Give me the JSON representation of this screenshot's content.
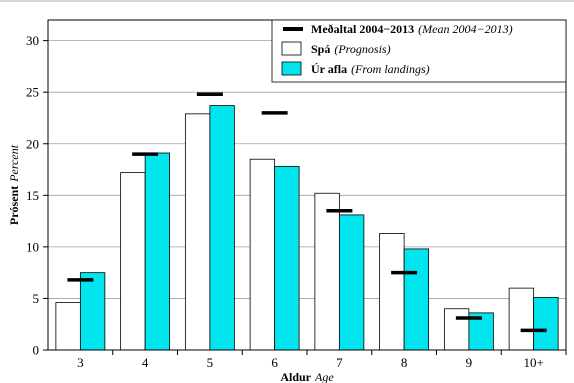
{
  "chart_data": {
    "type": "bar",
    "categories": [
      "3",
      "4",
      "5",
      "6",
      "7",
      "8",
      "9",
      "10+"
    ],
    "series": [
      {
        "name": "Spá",
        "name_en": "(Prognosis)",
        "color": "#ffffff",
        "values": [
          4.6,
          17.2,
          22.9,
          18.5,
          15.2,
          11.3,
          4.0,
          6.0
        ]
      },
      {
        "name": "Úr afla",
        "name_en": "(From landings)",
        "color": "#00e5ee",
        "values": [
          7.5,
          19.1,
          23.7,
          17.8,
          13.1,
          9.8,
          3.6,
          5.1
        ]
      }
    ],
    "mean": {
      "name": "Meðaltal 2004−2013",
      "name_en": "(Mean 2004−2013)",
      "values": [
        6.8,
        19.0,
        24.8,
        23.0,
        13.5,
        7.5,
        3.1,
        1.9
      ]
    },
    "ylim": [
      0,
      32
    ],
    "yticks": [
      0,
      5,
      10,
      15,
      20,
      25,
      30
    ],
    "xlabel": "Aldur",
    "xlabel_en": "Age",
    "ylabel": "Prósent",
    "ylabel_en": "Percent",
    "grid": true,
    "legend_position": "top-right"
  }
}
